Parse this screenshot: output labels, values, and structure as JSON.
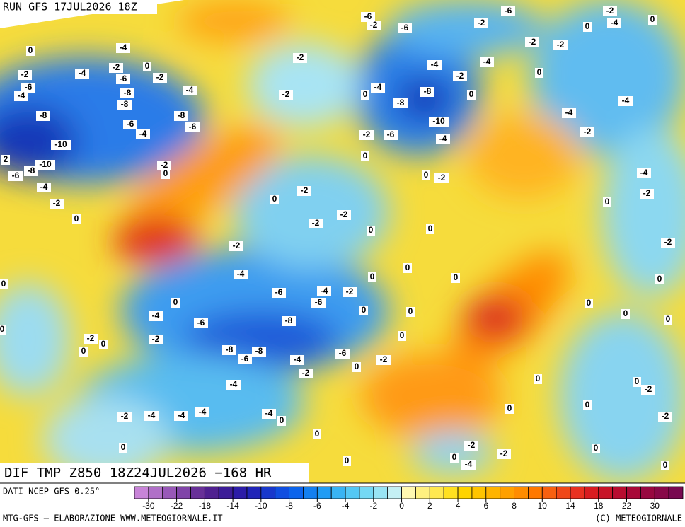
{
  "header": {
    "run": "RUN GFS 17JUL2026 18Z"
  },
  "footer": {
    "title": "DIF TMP Z850 18Z24JUL2026 −168 HR",
    "source": "DATI NCEP GFS 0.25°",
    "credit": "MTG-GFS — ELABORAZIONE WWW.METEOGIORNALE.IT",
    "copyright": "(C) METEOGIORNALE"
  },
  "colorbar": {
    "ticks": [
      -30,
      -22,
      -18,
      -14,
      -10,
      -8,
      -6,
      -4,
      -2,
      0,
      2,
      4,
      6,
      8,
      10,
      14,
      18,
      22,
      30
    ],
    "colors": [
      "#c884d8",
      "#b070c8",
      "#9858b8",
      "#8044a8",
      "#683098",
      "#502090",
      "#3c1c98",
      "#2c1ca8",
      "#2024b8",
      "#1838cc",
      "#104ee0",
      "#0c64ec",
      "#1480f0",
      "#209cf4",
      "#38b4f4",
      "#54c8f4",
      "#74d8f4",
      "#98e4f4",
      "#c4f0f4",
      "#fff8b0",
      "#fff080",
      "#ffe850",
      "#ffe020",
      "#ffd400",
      "#ffc400",
      "#ffb400",
      "#ffa000",
      "#ff8c00",
      "#ff7800",
      "#f86010",
      "#f04818",
      "#e83020",
      "#d81c20",
      "#c81428",
      "#b80c30",
      "#a80838",
      "#980840",
      "#880848",
      "#780850"
    ]
  },
  "map_labels": [
    0,
    -4,
    -2,
    -6,
    -4,
    -4,
    -2,
    -6,
    0,
    -2,
    -8,
    -8,
    -4,
    -8,
    -8,
    -6,
    -4,
    -6,
    -10,
    2,
    -10,
    -8,
    -6,
    -2,
    0,
    -4,
    -2,
    0,
    -2,
    -2,
    -6,
    -2,
    -6,
    -6,
    -2,
    -2,
    -4,
    0,
    0,
    -2,
    -2,
    -4,
    -4,
    -2,
    0,
    -4,
    0,
    -8,
    -8,
    0,
    -10,
    -4,
    -6,
    -2,
    0,
    -4,
    -2,
    -4,
    0,
    -2,
    -4,
    -2,
    -2,
    0,
    -2,
    -2,
    0,
    0,
    0,
    -2,
    -2,
    -4,
    -6,
    -4,
    -2,
    -6,
    0,
    0,
    0,
    0,
    0,
    0,
    0,
    -4,
    -6,
    -8,
    -2,
    0,
    0,
    -2,
    -8,
    -8,
    -6,
    -4,
    -6,
    -2,
    0,
    -2,
    -4,
    0,
    0,
    0,
    0,
    -2,
    -2,
    -2,
    -4,
    -4,
    -4,
    -4,
    0,
    0,
    0,
    -2,
    0,
    -4,
    -2,
    0,
    0,
    0,
    0,
    0,
    0,
    0,
    0,
    0
  ]
}
